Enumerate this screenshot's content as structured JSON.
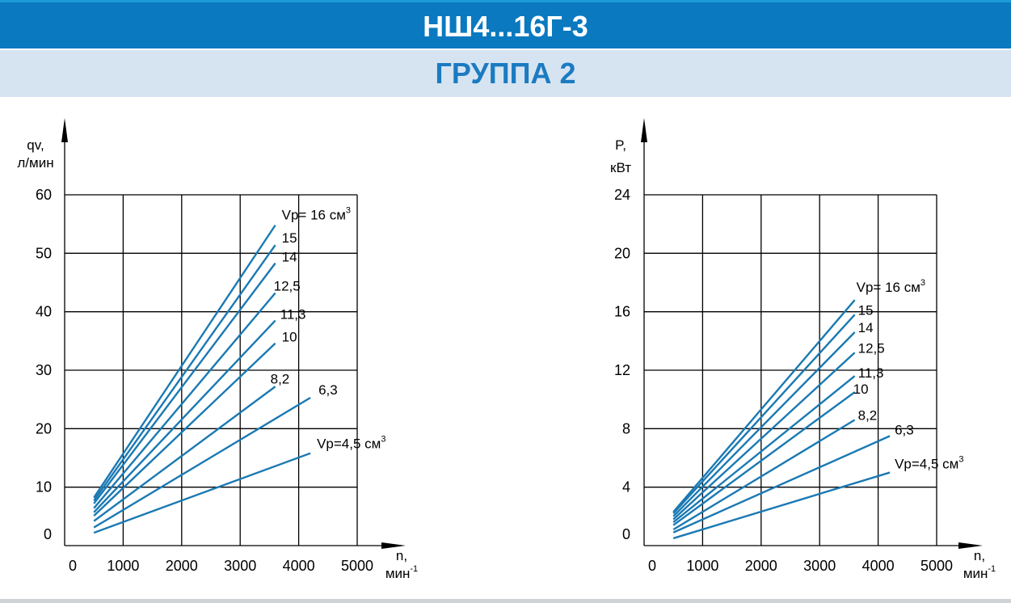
{
  "header": {
    "title": "НШ4...16Г-3",
    "subtitle": "ГРУППА 2"
  },
  "chart_data": [
    {
      "type": "line",
      "title": "",
      "xlabel_line1": "n,",
      "xlabel_line2": "мин",
      "xlabel_sup": "-1",
      "ylabel_line1": "qv,",
      "ylabel_line2": "л/мин",
      "xlim": [
        0,
        5000
      ],
      "ylim": [
        0,
        60
      ],
      "xticks": [
        0,
        1000,
        2000,
        3000,
        4000,
        5000
      ],
      "yticks": [
        0,
        10,
        20,
        30,
        40,
        50,
        60
      ],
      "xtick_labels": [
        "0",
        "1000",
        "2000",
        "3000",
        "4000",
        "5000"
      ],
      "ytick_labels": [
        "0",
        "10",
        "20",
        "30",
        "40",
        "50",
        "60"
      ],
      "grid": true,
      "series": [
        {
          "name": "Vp= 16 см",
          "sup": "3",
          "x": [
            500,
            3600
          ],
          "y": [
            8.2,
            54.8
          ]
        },
        {
          "name": "15",
          "sup": "",
          "x": [
            500,
            3600
          ],
          "y": [
            7.7,
            51.4
          ]
        },
        {
          "name": "14",
          "sup": "",
          "x": [
            500,
            3600
          ],
          "y": [
            7.2,
            48.3
          ]
        },
        {
          "name": "12,5",
          "sup": "",
          "x": [
            500,
            3600
          ],
          "y": [
            6.4,
            43.2
          ]
        },
        {
          "name": "11,3",
          "sup": "",
          "x": [
            500,
            3600
          ],
          "y": [
            5.7,
            38.5
          ]
        },
        {
          "name": "10",
          "sup": "",
          "x": [
            500,
            3600
          ],
          "y": [
            5.1,
            34.6
          ]
        },
        {
          "name": "8,2",
          "sup": "",
          "x": [
            500,
            3600
          ],
          "y": [
            4.2,
            27.2
          ]
        },
        {
          "name": "6,3",
          "sup": "",
          "x": [
            500,
            4200
          ],
          "y": [
            3.1,
            25.3
          ]
        },
        {
          "name": "Vp=4,5 см",
          "sup": "3",
          "x": [
            500,
            4200
          ],
          "y": [
            2.2,
            15.8
          ]
        }
      ]
    },
    {
      "type": "line",
      "title": "",
      "xlabel_line1": "n,",
      "xlabel_line2": "мин",
      "xlabel_sup": "-1",
      "ylabel_line1": "P,",
      "ylabel_line2": "кВт",
      "xlim": [
        0,
        5000
      ],
      "ylim": [
        0,
        24
      ],
      "xticks": [
        0,
        1000,
        2000,
        3000,
        4000,
        5000
      ],
      "yticks": [
        0,
        4,
        8,
        12,
        16,
        20,
        24
      ],
      "xtick_labels": [
        "0",
        "1000",
        "2000",
        "3000",
        "4000",
        "5000"
      ],
      "ytick_labels": [
        "0",
        "4",
        "8",
        "12",
        "16",
        "20",
        "24"
      ],
      "grid": true,
      "series": [
        {
          "name": "Vp= 16 см",
          "sup": "3",
          "x": [
            500,
            3600
          ],
          "y": [
            2.3,
            16.8
          ]
        },
        {
          "name": "15",
          "sup": "",
          "x": [
            500,
            3600
          ],
          "y": [
            2.2,
            15.8
          ]
        },
        {
          "name": "14",
          "sup": "",
          "x": [
            500,
            3600
          ],
          "y": [
            2.0,
            14.6
          ]
        },
        {
          "name": "12,5",
          "sup": "",
          "x": [
            500,
            3600
          ],
          "y": [
            1.8,
            13.2
          ]
        },
        {
          "name": "11,3",
          "sup": "",
          "x": [
            500,
            3600
          ],
          "y": [
            1.6,
            11.6
          ]
        },
        {
          "name": "10",
          "sup": "",
          "x": [
            500,
            3600
          ],
          "y": [
            1.4,
            10.5
          ]
        },
        {
          "name": "8,2",
          "sup": "",
          "x": [
            500,
            3600
          ],
          "y": [
            1.1,
            8.6
          ]
        },
        {
          "name": "6,3",
          "sup": "",
          "x": [
            500,
            4200
          ],
          "y": [
            0.9,
            7.5
          ]
        },
        {
          "name": "Vp=4,5 см",
          "sup": "3",
          "x": [
            500,
            4200
          ],
          "y": [
            0.5,
            5.0
          ]
        }
      ]
    }
  ]
}
